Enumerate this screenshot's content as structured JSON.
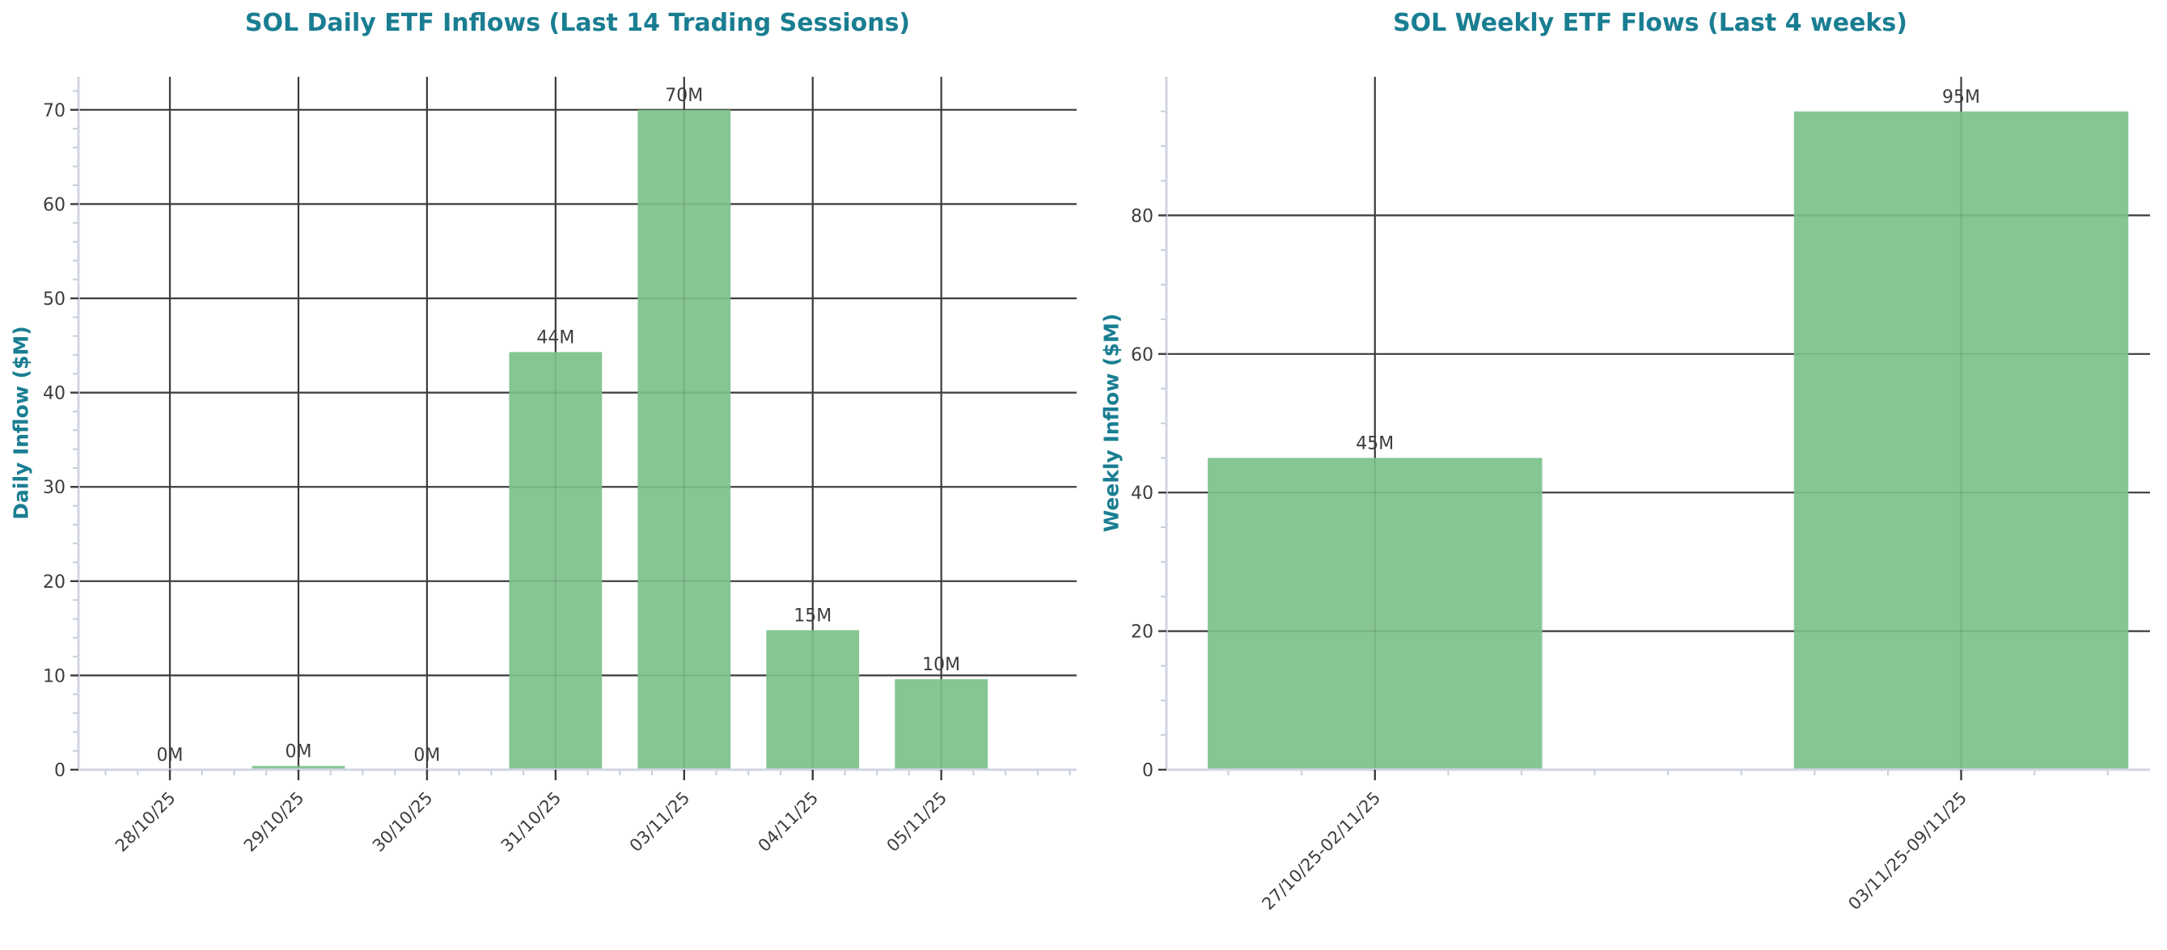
{
  "palette": {
    "background": "#ffffff",
    "title_teal": "#1a7e92",
    "bar_green": "#85c693",
    "grid_dark": "#3d3d3d",
    "tick_text": "#3d3d3d",
    "bar_label_text": "#3d3d3d",
    "spine_light": "#d2d5e4",
    "minor_tick": "#c9ccd8"
  },
  "chart_data": [
    {
      "type": "bar",
      "title": "SOL Daily ETF Inflows (Last 14 Trading Sessions)",
      "ylabel": "Daily Inflow ($M)",
      "xlabel": "",
      "categories": [
        "28/10/25",
        "29/10/25",
        "30/10/25",
        "31/10/25",
        "03/11/25",
        "04/11/25",
        "05/11/25"
      ],
      "values": [
        0,
        0.4,
        0,
        44.3,
        70,
        14.8,
        9.6
      ],
      "bar_labels": [
        "0M",
        "0M",
        "0M",
        "44M",
        "70M",
        "15M",
        "10M"
      ],
      "yticks": [
        0,
        10,
        20,
        30,
        40,
        50,
        60,
        70
      ],
      "ylim": [
        0,
        73.5
      ],
      "grid": "both",
      "legend": "none",
      "xtick_rotation_deg": 45
    },
    {
      "type": "bar",
      "title": "SOL Weekly ETF Flows (Last 4 weeks)",
      "ylabel": "Weekly Inflow ($M)",
      "xlabel": "",
      "categories": [
        "27/10/25-02/11/25",
        "03/11/25-09/11/25"
      ],
      "values": [
        45,
        95
      ],
      "bar_labels": [
        "45M",
        "95M"
      ],
      "yticks": [
        0,
        20,
        40,
        60,
        80
      ],
      "ylim": [
        0,
        100
      ],
      "grid": "both",
      "legend": "none",
      "xtick_rotation_deg": 45
    }
  ]
}
